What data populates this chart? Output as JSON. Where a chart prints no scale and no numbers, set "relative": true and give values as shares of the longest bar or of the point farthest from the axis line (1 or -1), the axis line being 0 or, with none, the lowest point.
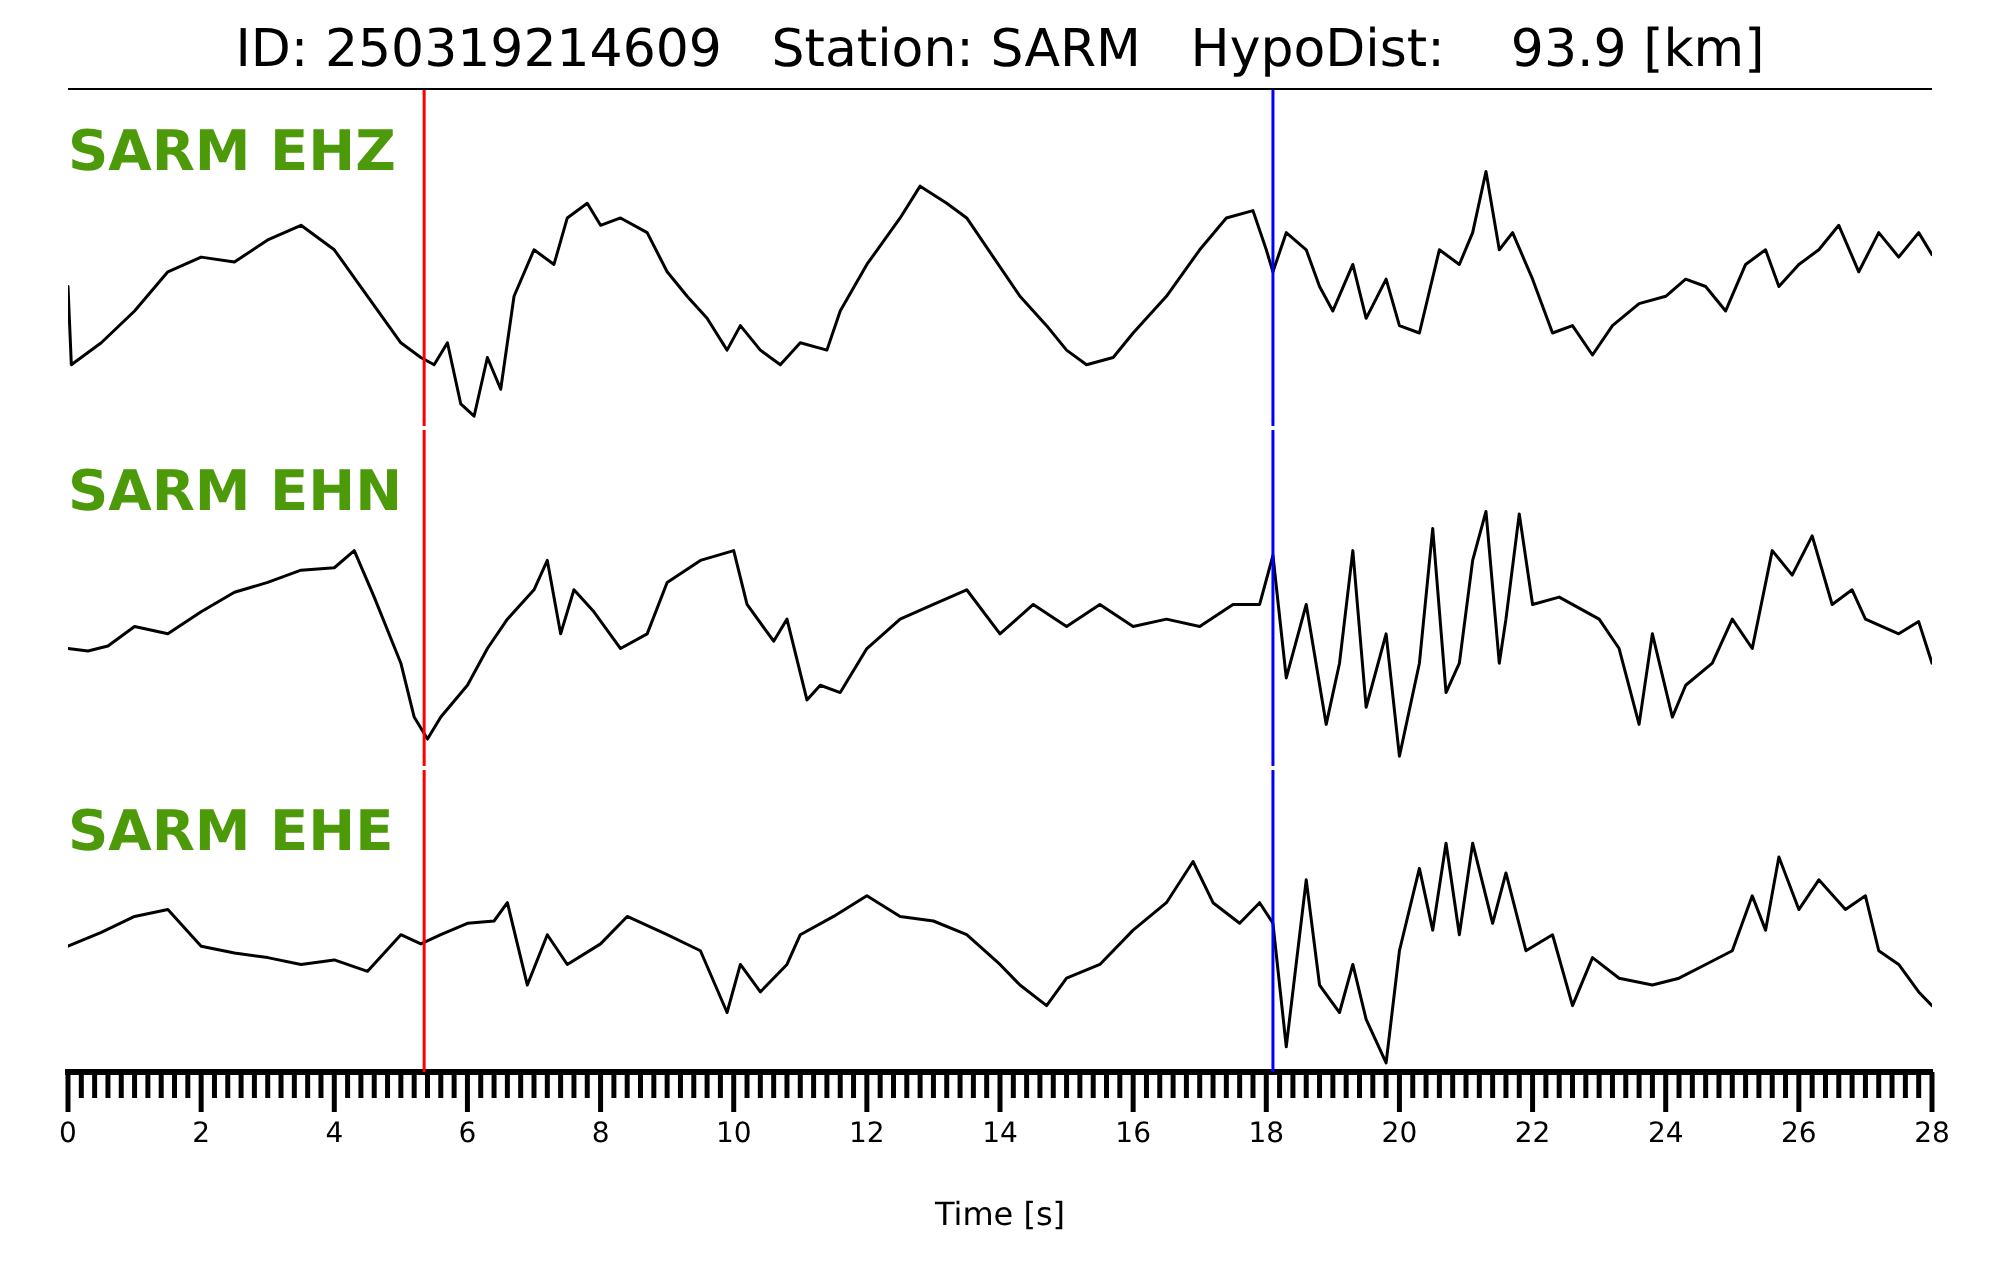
{
  "chart_data": [
    {
      "type": "line",
      "title": "ID: 250319214609   Station: SARM   HypoDist:    93.9 [km]",
      "relative": true,
      "xlim": [
        0,
        28
      ],
      "tick_labels": false,
      "ref_lines": [
        {
          "axis": "x",
          "value": 5.35,
          "color": "#ff0000"
        },
        {
          "axis": "x",
          "value": 18.1,
          "color": "#0000ff"
        }
      ],
      "x": [
        0,
        0.05,
        0.5,
        1,
        1.5,
        2,
        2.5,
        3,
        3.5,
        4,
        4.5,
        5,
        5.3,
        5.5,
        5.7,
        5.9,
        6.1,
        6.3,
        6.5,
        6.7,
        7,
        7.3,
        7.5,
        7.8,
        8,
        8.3,
        8.7,
        9,
        9.3,
        9.6,
        9.9,
        10.1,
        10.4,
        10.7,
        11,
        11.4,
        11.6,
        12,
        12.5,
        12.8,
        13.2,
        13.5,
        13.9,
        14.3,
        14.7,
        15,
        15.3,
        15.7,
        16,
        16.5,
        17,
        17.4,
        17.8,
        18,
        18.1,
        18.3,
        18.6,
        18.8,
        19,
        19.3,
        19.5,
        19.8,
        20,
        20.3,
        20.6,
        20.9,
        21.1,
        21.3,
        21.5,
        21.7,
        22,
        22.3,
        22.6,
        22.9,
        23.2,
        23.6,
        24,
        24.3,
        24.6,
        24.9,
        25.2,
        25.5,
        25.7,
        26,
        26.3,
        26.6,
        26.9,
        27.2,
        27.5,
        27.8,
        28
      ],
      "series": [
        {
          "name": "SARM EHZ",
          "color": "#000000",
          "values": [
            0.53,
            0.21,
            0.3,
            0.43,
            0.59,
            0.65,
            0.63,
            0.72,
            0.78,
            0.68,
            0.49,
            0.3,
            0.24,
            0.21,
            0.3,
            0.05,
            0,
            0.24,
            0.11,
            0.49,
            0.68,
            0.62,
            0.81,
            0.87,
            0.78,
            0.81,
            0.75,
            0.59,
            0.49,
            0.4,
            0.27,
            0.37,
            0.27,
            0.21,
            0.3,
            0.27,
            0.43,
            0.62,
            0.81,
            0.94,
            0.87,
            0.81,
            0.65,
            0.49,
            0.37,
            0.27,
            0.21,
            0.24,
            0.34,
            0.49,
            0.68,
            0.81,
            0.84,
            0.68,
            0.59,
            0.75,
            0.68,
            0.53,
            0.43,
            0.62,
            0.4,
            0.56,
            0.37,
            0.34,
            0.68,
            0.62,
            0.75,
            1,
            0.68,
            0.75,
            0.56,
            0.34,
            0.37,
            0.25,
            0.37,
            0.46,
            0.49,
            0.56,
            0.53,
            0.43,
            0.62,
            0.68,
            0.53,
            0.62,
            0.68,
            0.78,
            0.59,
            0.75,
            0.65,
            0.75,
            0.66
          ]
        }
      ]
    },
    {
      "type": "line",
      "relative": true,
      "xlim": [
        0,
        28
      ],
      "tick_labels": false,
      "ref_lines": [
        {
          "axis": "x",
          "value": 5.35,
          "color": "#ff0000"
        },
        {
          "axis": "x",
          "value": 18.1,
          "color": "#0000ff"
        }
      ],
      "x": [
        0,
        0.3,
        0.6,
        1,
        1.5,
        2,
        2.5,
        3,
        3.5,
        4,
        4.3,
        4.6,
        5,
        5.2,
        5.4,
        5.6,
        6,
        6.3,
        6.6,
        7,
        7.2,
        7.4,
        7.6,
        7.9,
        8.3,
        8.7,
        9,
        9.5,
        10,
        10.2,
        10.6,
        10.8,
        11.1,
        11.3,
        11.6,
        12,
        12.5,
        13,
        13.5,
        14,
        14.5,
        15,
        15.5,
        16,
        16.5,
        17,
        17.5,
        17.9,
        18.1,
        18.3,
        18.6,
        18.9,
        19.1,
        19.3,
        19.5,
        19.8,
        20,
        20.3,
        20.5,
        20.7,
        20.9,
        21.1,
        21.3,
        21.5,
        21.6,
        21.8,
        22,
        22.4,
        23,
        23.3,
        23.6,
        23.8,
        24.1,
        24.3,
        24.7,
        25,
        25.3,
        25.6,
        25.9,
        26.2,
        26.5,
        26.8,
        27,
        27.5,
        27.8,
        28
      ],
      "series": [
        {
          "name": "SARM EHN",
          "color": "#000000",
          "values": [
            0.44,
            0.43,
            0.45,
            0.53,
            0.5,
            0.59,
            0.67,
            0.71,
            0.76,
            0.77,
            0.84,
            0.65,
            0.38,
            0.16,
            0.07,
            0.16,
            0.29,
            0.44,
            0.56,
            0.68,
            0.8,
            0.5,
            0.68,
            0.59,
            0.44,
            0.5,
            0.71,
            0.8,
            0.84,
            0.62,
            0.47,
            0.56,
            0.23,
            0.29,
            0.26,
            0.44,
            0.56,
            0.62,
            0.68,
            0.5,
            0.62,
            0.53,
            0.62,
            0.53,
            0.56,
            0.53,
            0.62,
            0.62,
            0.82,
            0.32,
            0.62,
            0.13,
            0.38,
            0.84,
            0.2,
            0.5,
            0,
            0.38,
            0.93,
            0.26,
            0.38,
            0.8,
            1,
            0.38,
            0.56,
            0.99,
            0.62,
            0.65,
            0.56,
            0.44,
            0.13,
            0.5,
            0.16,
            0.29,
            0.38,
            0.56,
            0.44,
            0.84,
            0.74,
            0.9,
            0.62,
            0.68,
            0.56,
            0.5,
            0.55,
            0.38
          ]
        }
      ]
    },
    {
      "type": "line",
      "relative": true,
      "xlim": [
        0,
        28
      ],
      "tick_labels": "x",
      "xlabel": "Time [s]",
      "ref_lines": [
        {
          "axis": "x",
          "value": 5.35,
          "color": "#ff0000"
        },
        {
          "axis": "x",
          "value": 18.1,
          "color": "#0000ff"
        }
      ],
      "xticks": [
        0,
        {
          "value": 0.2,
          "label": null
        },
        {
          "value": 0.4,
          "label": null
        },
        {
          "value": 0.6,
          "label": null
        },
        {
          "value": 0.8,
          "label": null
        },
        {
          "value": 1,
          "label": null
        },
        {
          "value": 1.2,
          "label": null
        },
        {
          "value": 1.4,
          "label": null
        },
        {
          "value": 1.6,
          "label": null
        },
        {
          "value": 1.8,
          "label": null
        },
        2,
        {
          "value": 2.2,
          "label": null
        },
        {
          "value": 2.4,
          "label": null
        },
        {
          "value": 2.6,
          "label": null
        },
        {
          "value": 2.8,
          "label": null
        },
        {
          "value": 3,
          "label": null
        },
        {
          "value": 3.2,
          "label": null
        },
        {
          "value": 3.4,
          "label": null
        },
        {
          "value": 3.6,
          "label": null
        },
        {
          "value": 3.8,
          "label": null
        },
        4,
        {
          "value": 4.2,
          "label": null
        },
        {
          "value": 4.4,
          "label": null
        },
        {
          "value": 4.6,
          "label": null
        },
        {
          "value": 4.8,
          "label": null
        },
        {
          "value": 5,
          "label": null
        },
        {
          "value": 5.2,
          "label": null
        },
        {
          "value": 5.4,
          "label": null
        },
        {
          "value": 5.6,
          "label": null
        },
        {
          "value": 5.8,
          "label": null
        },
        6,
        {
          "value": 6.2,
          "label": null
        },
        {
          "value": 6.4,
          "label": null
        },
        {
          "value": 6.6,
          "label": null
        },
        {
          "value": 6.8,
          "label": null
        },
        {
          "value": 7,
          "label": null
        },
        {
          "value": 7.2,
          "label": null
        },
        {
          "value": 7.4,
          "label": null
        },
        {
          "value": 7.6,
          "label": null
        },
        {
          "value": 7.8,
          "label": null
        },
        8,
        {
          "value": 8.2,
          "label": null
        },
        {
          "value": 8.4,
          "label": null
        },
        {
          "value": 8.6,
          "label": null
        },
        {
          "value": 8.8,
          "label": null
        },
        {
          "value": 9,
          "label": null
        },
        {
          "value": 9.2,
          "label": null
        },
        {
          "value": 9.4,
          "label": null
        },
        {
          "value": 9.6,
          "label": null
        },
        {
          "value": 9.8,
          "label": null
        },
        10,
        {
          "value": 10.2,
          "label": null
        },
        {
          "value": 10.4,
          "label": null
        },
        {
          "value": 10.6,
          "label": null
        },
        {
          "value": 10.8,
          "label": null
        },
        {
          "value": 11,
          "label": null
        },
        {
          "value": 11.2,
          "label": null
        },
        {
          "value": 11.4,
          "label": null
        },
        {
          "value": 11.6,
          "label": null
        },
        {
          "value": 11.8,
          "label": null
        },
        12,
        {
          "value": 12.2,
          "label": null
        },
        {
          "value": 12.4,
          "label": null
        },
        {
          "value": 12.6,
          "label": null
        },
        {
          "value": 12.8,
          "label": null
        },
        {
          "value": 13,
          "label": null
        },
        {
          "value": 13.2,
          "label": null
        },
        {
          "value": 13.4,
          "label": null
        },
        {
          "value": 13.6,
          "label": null
        },
        {
          "value": 13.8,
          "label": null
        },
        14,
        {
          "value": 14.2,
          "label": null
        },
        {
          "value": 14.4,
          "label": null
        },
        {
          "value": 14.6,
          "label": null
        },
        {
          "value": 14.8,
          "label": null
        },
        {
          "value": 15,
          "label": null
        },
        {
          "value": 15.2,
          "label": null
        },
        {
          "value": 15.4,
          "label": null
        },
        {
          "value": 15.6,
          "label": null
        },
        {
          "value": 15.8,
          "label": null
        },
        16,
        {
          "value": 16.2,
          "label": null
        },
        {
          "value": 16.4,
          "label": null
        },
        {
          "value": 16.6,
          "label": null
        },
        {
          "value": 16.8,
          "label": null
        },
        {
          "value": 17,
          "label": null
        },
        {
          "value": 17.2,
          "label": null
        },
        {
          "value": 17.4,
          "label": null
        },
        {
          "value": 17.6,
          "label": null
        },
        {
          "value": 17.8,
          "label": null
        },
        18,
        {
          "value": 18.2,
          "label": null
        },
        {
          "value": 18.4,
          "label": null
        },
        {
          "value": 18.6,
          "label": null
        },
        {
          "value": 18.8,
          "label": null
        },
        {
          "value": 19,
          "label": null
        },
        {
          "value": 19.2,
          "label": null
        },
        {
          "value": 19.4,
          "label": null
        },
        {
          "value": 19.6,
          "label": null
        },
        {
          "value": 19.8,
          "label": null
        },
        20,
        {
          "value": 20.2,
          "label": null
        },
        {
          "value": 20.4,
          "label": null
        },
        {
          "value": 20.6,
          "label": null
        },
        {
          "value": 20.8,
          "label": null
        },
        {
          "value": 21,
          "label": null
        },
        {
          "value": 21.2,
          "label": null
        },
        {
          "value": 21.4,
          "label": null
        },
        {
          "value": 21.6,
          "label": null
        },
        {
          "value": 21.8,
          "label": null
        },
        22,
        {
          "value": 22.2,
          "label": null
        },
        {
          "value": 22.4,
          "label": null
        },
        {
          "value": 22.6,
          "label": null
        },
        {
          "value": 22.8,
          "label": null
        },
        {
          "value": 23,
          "label": null
        },
        {
          "value": 23.2,
          "label": null
        },
        {
          "value": 23.4,
          "label": null
        },
        {
          "value": 23.6,
          "label": null
        },
        {
          "value": 23.8,
          "label": null
        },
        24,
        {
          "value": 24.2,
          "label": null
        },
        {
          "value": 24.4,
          "label": null
        },
        {
          "value": 24.6,
          "label": null
        },
        {
          "value": 24.8,
          "label": null
        },
        {
          "value": 25,
          "label": null
        },
        {
          "value": 25.2,
          "label": null
        },
        {
          "value": 25.4,
          "label": null
        },
        {
          "value": 25.6,
          "label": null
        },
        {
          "value": 25.8,
          "label": null
        },
        26,
        {
          "value": 26.2,
          "label": null
        },
        {
          "value": 26.4,
          "label": null
        },
        {
          "value": 26.6,
          "label": null
        },
        {
          "value": 26.8,
          "label": null
        },
        {
          "value": 27,
          "label": null
        },
        {
          "value": 27.2,
          "label": null
        },
        {
          "value": 27.4,
          "label": null
        },
        {
          "value": 27.6,
          "label": null
        },
        {
          "value": 27.8,
          "label": null
        },
        28
      ],
      "x": [
        0,
        0.5,
        1,
        1.5,
        2,
        2.5,
        3,
        3.5,
        4,
        4.5,
        5,
        5.3,
        5.6,
        6,
        6.4,
        6.6,
        6.9,
        7.2,
        7.5,
        8,
        8.4,
        9,
        9.5,
        9.9,
        10.1,
        10.4,
        10.8,
        11,
        11.5,
        12,
        12.5,
        13,
        13.5,
        14,
        14.3,
        14.7,
        15,
        15.5,
        16,
        16.5,
        16.9,
        17.2,
        17.6,
        17.9,
        18.1,
        18.3,
        18.6,
        18.8,
        19.1,
        19.3,
        19.5,
        19.8,
        20,
        20.3,
        20.5,
        20.7,
        20.9,
        21.1,
        21.4,
        21.6,
        21.9,
        22.3,
        22.6,
        22.9,
        23.3,
        23.8,
        24.2,
        24.6,
        25,
        25.3,
        25.5,
        25.7,
        26,
        26.3,
        26.7,
        27,
        27.2,
        27.5,
        27.8,
        28
      ],
      "series": [
        {
          "name": "SARM EHE",
          "color": "#000000",
          "values": [
            0.55,
            0.61,
            0.68,
            0.71,
            0.55,
            0.52,
            0.5,
            0.47,
            0.49,
            0.44,
            0.6,
            0.56,
            0.6,
            0.65,
            0.66,
            0.74,
            0.38,
            0.6,
            0.47,
            0.56,
            0.68,
            0.6,
            0.53,
            0.26,
            0.47,
            0.35,
            0.47,
            0.6,
            0.68,
            0.77,
            0.68,
            0.66,
            0.6,
            0.47,
            0.38,
            0.29,
            0.41,
            0.47,
            0.62,
            0.74,
            0.92,
            0.74,
            0.65,
            0.74,
            0.65,
            0.11,
            0.84,
            0.38,
            0.26,
            0.47,
            0.23,
            0.04,
            0.53,
            0.89,
            0.62,
            1,
            0.6,
            1,
            0.65,
            0.87,
            0.53,
            0.6,
            0.29,
            0.5,
            0.41,
            0.38,
            0.41,
            0.47,
            0.53,
            0.77,
            0.62,
            0.94,
            0.71,
            0.84,
            0.71,
            0.77,
            0.53,
            0.47,
            0.35,
            0.29
          ]
        }
      ]
    }
  ]
}
